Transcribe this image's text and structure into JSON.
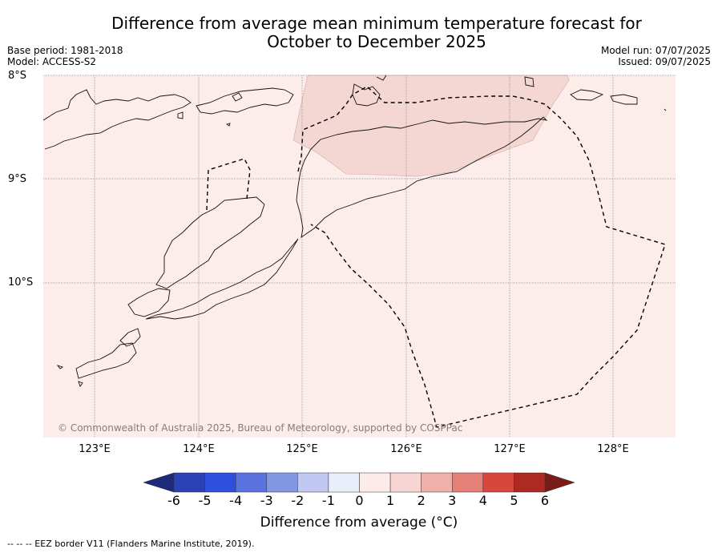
{
  "title_line1": "Difference from average mean minimum temperature forecast for",
  "title_line2": "October to December 2025",
  "base_period": "Base period: 1981-2018",
  "model": "Model: ACCESS-S2",
  "model_run": "Model run: 07/07/2025",
  "issued": "Issued: 09/07/2025",
  "latitudes": [
    "8°S",
    "9°S",
    "10°S"
  ],
  "longitudes": [
    "123°E",
    "124°E",
    "125°E",
    "126°E",
    "127°E",
    "128°E"
  ],
  "copyright": "© Commonwealth of Australia 2025, Bureau of Meteorology, supported by COSPPac",
  "colorbar": {
    "ticks": [
      "-6",
      "-5",
      "-4",
      "-3",
      "-2",
      "-1",
      "0",
      "1",
      "2",
      "3",
      "4",
      "5",
      "6"
    ],
    "label": "Difference from average (°C)",
    "colors": [
      "#1c2a7a",
      "#2a42b5",
      "#2f50dc",
      "#5a73e0",
      "#8296e4",
      "#c0c8f2",
      "#eaeefb",
      "#fcebe9",
      "#f5d6d2",
      "#efb0a9",
      "#e58078",
      "#d9463c",
      "#ad2a22",
      "#7a1b18"
    ]
  },
  "map_colors": {
    "background": "#fcecea",
    "anomaly_patch": "#f4d6d2"
  },
  "legend_note": "--  --  -- EEZ border V11 (Flanders Marine Institute, 2019)."
}
